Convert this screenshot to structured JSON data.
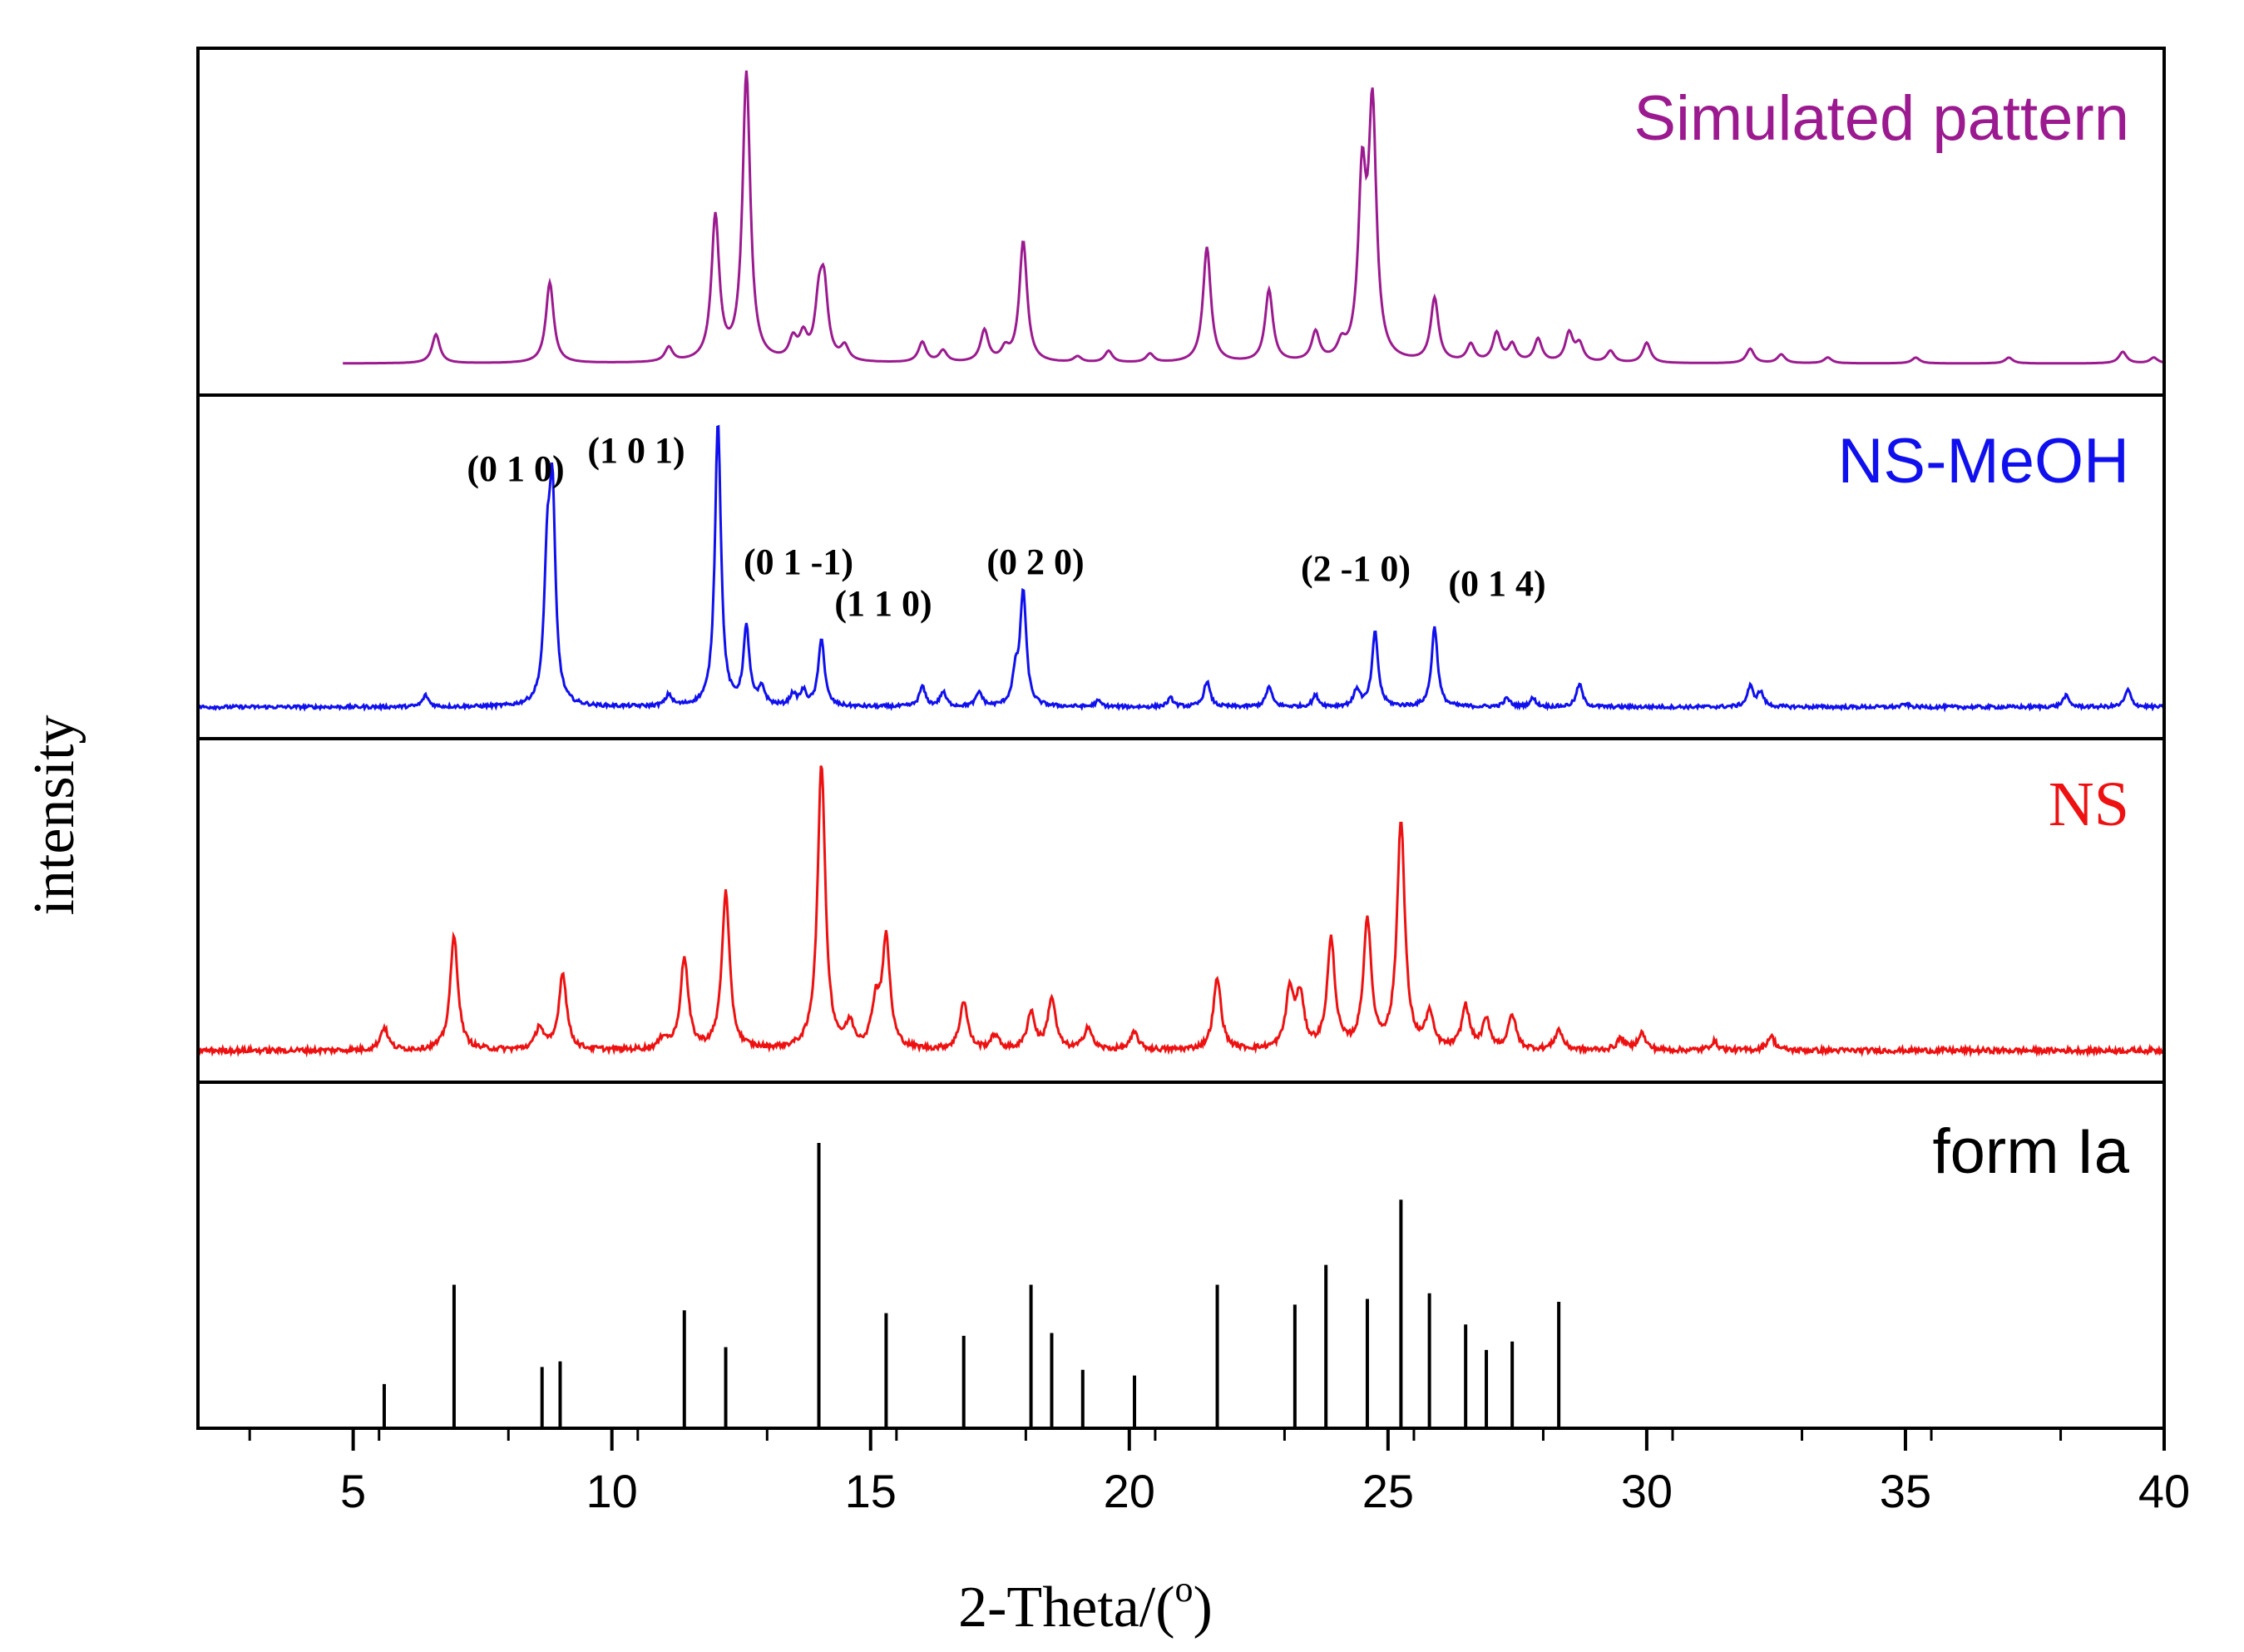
{
  "chart_data": {
    "type": "line",
    "title": "",
    "xlabel": "2-Theta/(",
    "xlabel_sup": "o",
    "xlabel_close": ")",
    "ylabel": "intensity",
    "xlim": [
      2,
      40
    ],
    "xticks": [
      5,
      10,
      15,
      20,
      25,
      30,
      35,
      40
    ],
    "xtick_labels": [
      "5",
      "10",
      "15",
      "20",
      "25",
      "30",
      "35",
      "40"
    ],
    "panels": [
      {
        "name": "Simulated pattern",
        "label": "Simulated pattern",
        "color": "#9b1a8f",
        "kind": "profile",
        "x_start": 4.8,
        "width": 0.09,
        "noise": 0.0,
        "peaks": [
          [
            6.6,
            0.1
          ],
          [
            8.8,
            0.28
          ],
          [
            11.1,
            0.05
          ],
          [
            12.0,
            0.5
          ],
          [
            12.6,
            1.0
          ],
          [
            13.5,
            0.07
          ],
          [
            13.7,
            0.08
          ],
          [
            14.0,
            0.18
          ],
          [
            14.1,
            0.24
          ],
          [
            14.5,
            0.05
          ],
          [
            16.0,
            0.07
          ],
          [
            16.4,
            0.04
          ],
          [
            17.2,
            0.11
          ],
          [
            17.6,
            0.04
          ],
          [
            17.95,
            0.42
          ],
          [
            19.0,
            0.02
          ],
          [
            19.6,
            0.04
          ],
          [
            20.4,
            0.03
          ],
          [
            21.5,
            0.4
          ],
          [
            22.7,
            0.25
          ],
          [
            23.6,
            0.1
          ],
          [
            24.1,
            0.05
          ],
          [
            24.5,
            0.6
          ],
          [
            24.7,
            0.85
          ],
          [
            25.9,
            0.22
          ],
          [
            26.6,
            0.06
          ],
          [
            27.1,
            0.1
          ],
          [
            27.4,
            0.06
          ],
          [
            27.9,
            0.08
          ],
          [
            28.5,
            0.1
          ],
          [
            28.7,
            0.06
          ],
          [
            29.3,
            0.04
          ],
          [
            30.0,
            0.07
          ],
          [
            32.0,
            0.05
          ],
          [
            32.6,
            0.03
          ],
          [
            33.5,
            0.02
          ],
          [
            35.2,
            0.02
          ],
          [
            37.0,
            0.02
          ],
          [
            39.2,
            0.04
          ],
          [
            39.8,
            0.02
          ]
        ]
      },
      {
        "name": "NS-MeOH",
        "label": "NS-MeOH",
        "color": "#1010ee",
        "kind": "profile",
        "x_start": 2.0,
        "width": 0.07,
        "noise": 0.012,
        "peaks": [
          [
            6.4,
            0.04
          ],
          [
            8.75,
            0.45
          ],
          [
            8.85,
            0.7
          ],
          [
            11.1,
            0.04
          ],
          [
            12.05,
            1.0
          ],
          [
            12.6,
            0.27
          ],
          [
            12.9,
            0.06
          ],
          [
            13.5,
            0.04
          ],
          [
            13.7,
            0.05
          ],
          [
            14.05,
            0.24
          ],
          [
            16.0,
            0.07
          ],
          [
            16.4,
            0.05
          ],
          [
            17.1,
            0.05
          ],
          [
            17.8,
            0.1
          ],
          [
            17.95,
            0.4
          ],
          [
            19.4,
            0.02
          ],
          [
            20.8,
            0.03
          ],
          [
            21.5,
            0.09
          ],
          [
            22.7,
            0.07
          ],
          [
            23.6,
            0.04
          ],
          [
            24.4,
            0.06
          ],
          [
            24.75,
            0.26
          ],
          [
            25.9,
            0.28
          ],
          [
            27.3,
            0.03
          ],
          [
            27.8,
            0.03
          ],
          [
            28.7,
            0.08
          ],
          [
            32.0,
            0.07
          ],
          [
            32.2,
            0.05
          ],
          [
            35.0,
            0.01
          ],
          [
            38.1,
            0.04
          ],
          [
            39.3,
            0.06
          ]
        ],
        "annotations": [
          "(0 1 0)",
          "(1 0 1)",
          "(0 1 -1)",
          "(1 1 0)",
          "(0 2 0)",
          "(2 -1 0)",
          "(0 1 4)"
        ]
      },
      {
        "name": "NS",
        "label": "NS",
        "color": "#ee1111",
        "kind": "profile",
        "x_start": 2.0,
        "width": 0.09,
        "noise": 0.018,
        "peaks": [
          [
            5.6,
            0.08
          ],
          [
            6.95,
            0.4
          ],
          [
            8.6,
            0.08
          ],
          [
            9.05,
            0.27
          ],
          [
            11.0,
            0.04
          ],
          [
            11.4,
            0.32
          ],
          [
            12.2,
            0.55
          ],
          [
            14.05,
            1.0
          ],
          [
            14.6,
            0.08
          ],
          [
            15.1,
            0.15
          ],
          [
            15.3,
            0.38
          ],
          [
            16.8,
            0.17
          ],
          [
            17.4,
            0.05
          ],
          [
            18.1,
            0.13
          ],
          [
            18.5,
            0.18
          ],
          [
            19.2,
            0.08
          ],
          [
            20.1,
            0.06
          ],
          [
            21.7,
            0.25
          ],
          [
            23.1,
            0.2
          ],
          [
            23.3,
            0.18
          ],
          [
            23.9,
            0.38
          ],
          [
            24.6,
            0.45
          ],
          [
            25.25,
            0.8
          ],
          [
            25.8,
            0.12
          ],
          [
            26.5,
            0.15
          ],
          [
            26.9,
            0.1
          ],
          [
            27.4,
            0.12
          ],
          [
            28.3,
            0.07
          ],
          [
            29.5,
            0.04
          ],
          [
            29.9,
            0.06
          ],
          [
            31.3,
            0.03
          ],
          [
            32.4,
            0.05
          ]
        ]
      },
      {
        "name": "form Ia",
        "label": "form Ia",
        "color": "#000000",
        "kind": "sticks",
        "sticks": [
          [
            5.6,
            0.15
          ],
          [
            6.95,
            0.5
          ],
          [
            8.65,
            0.21
          ],
          [
            9.0,
            0.23
          ],
          [
            11.4,
            0.41
          ],
          [
            12.2,
            0.28
          ],
          [
            14.0,
            1.0
          ],
          [
            15.3,
            0.4
          ],
          [
            16.8,
            0.32
          ],
          [
            18.1,
            0.5
          ],
          [
            18.5,
            0.33
          ],
          [
            19.1,
            0.2
          ],
          [
            20.1,
            0.18
          ],
          [
            21.7,
            0.5
          ],
          [
            23.2,
            0.43
          ],
          [
            23.8,
            0.57
          ],
          [
            24.6,
            0.45
          ],
          [
            25.25,
            0.8
          ],
          [
            25.8,
            0.47
          ],
          [
            26.5,
            0.36
          ],
          [
            26.9,
            0.27
          ],
          [
            27.4,
            0.3
          ],
          [
            28.3,
            0.44
          ]
        ]
      }
    ]
  }
}
